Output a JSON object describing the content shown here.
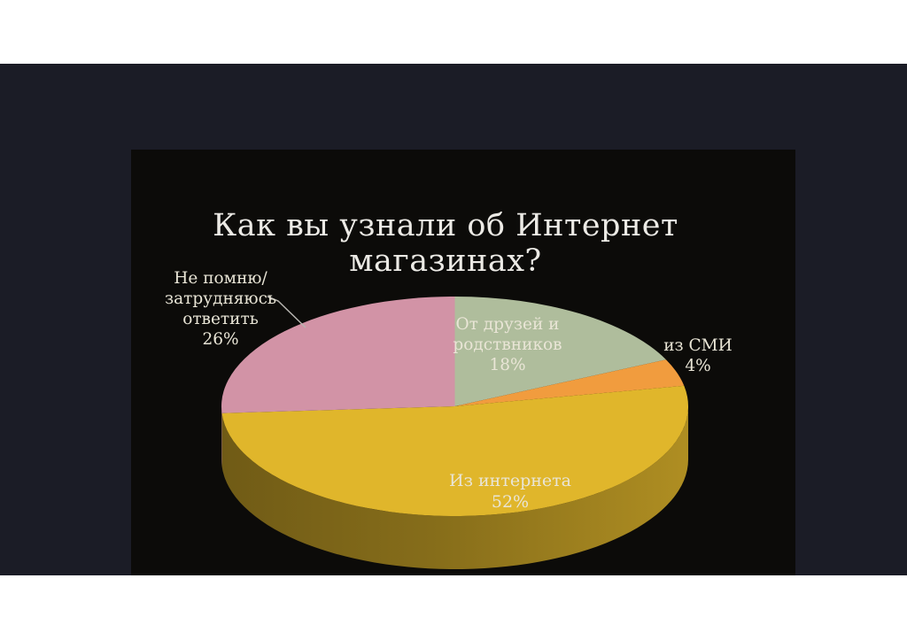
{
  "page": {
    "margin_color": "#ffffff",
    "frame_color": "#1b1c26",
    "slide_color": "#0c0b09",
    "label_text_color": "#e9e5d6"
  },
  "chart_data": {
    "type": "pie",
    "style": "3d",
    "title": "Как вы узнали об Интернет магазинах?",
    "categories": [
      "От друзей и родствников",
      "из СМИ",
      "Из интернета",
      "Не помню/ затрудняюсь ответить"
    ],
    "values": [
      18,
      4,
      52,
      26
    ],
    "data_labels": [
      "18%",
      "4%",
      "52%",
      "26%"
    ],
    "colors": [
      "#afbd9c",
      "#f19c3e",
      "#e0b62b",
      "#d293a6"
    ],
    "start_angle_deg": 0,
    "direction": "clockwise",
    "legend": "none",
    "background": "#0c0b09"
  },
  "labels": {
    "memory": {
      "lines": [
        "Не помню/",
        "затрудняюсь",
        "ответить",
        "26%"
      ]
    },
    "friends": {
      "lines": [
        "От друзей и",
        "родствников",
        "18%"
      ]
    },
    "smi": {
      "lines": [
        "из СМИ",
        "4%"
      ]
    },
    "internet": {
      "lines": [
        "Из интернета",
        "52%"
      ]
    }
  }
}
